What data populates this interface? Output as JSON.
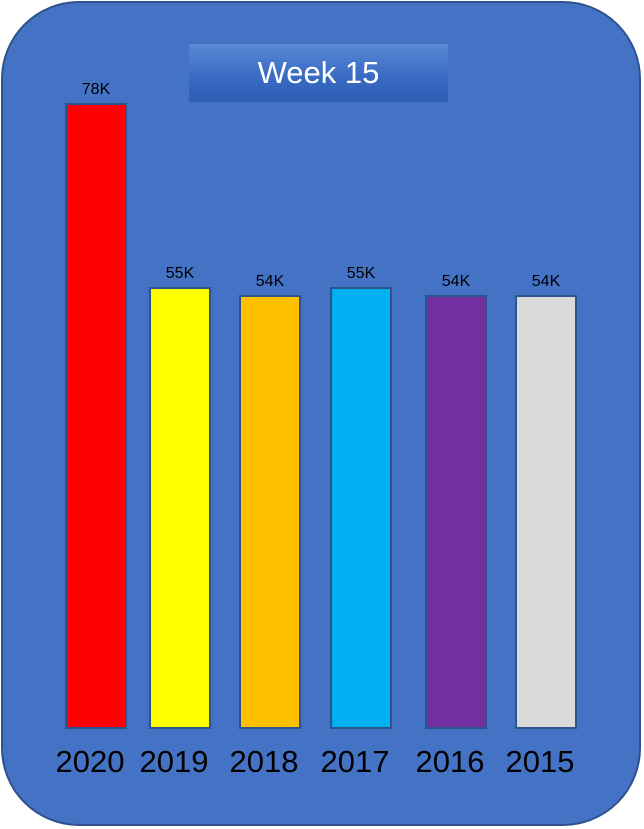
{
  "chart_data": {
    "type": "bar",
    "title": "Week 15",
    "categories": [
      "2020",
      "2019",
      "2018",
      "2017",
      "2016",
      "2015"
    ],
    "values": [
      78000,
      55000,
      54000,
      55000,
      54000,
      54000
    ],
    "data_labels": [
      "78K",
      "55K",
      "54K",
      "55K",
      "54K",
      "54K"
    ],
    "colors": [
      "#ff0000",
      "#ffff00",
      "#ffc000",
      "#00b0f0",
      "#7030a0",
      "#d9d9d9"
    ],
    "ylim": [
      0,
      80000
    ],
    "grid": false,
    "legend": "none"
  }
}
